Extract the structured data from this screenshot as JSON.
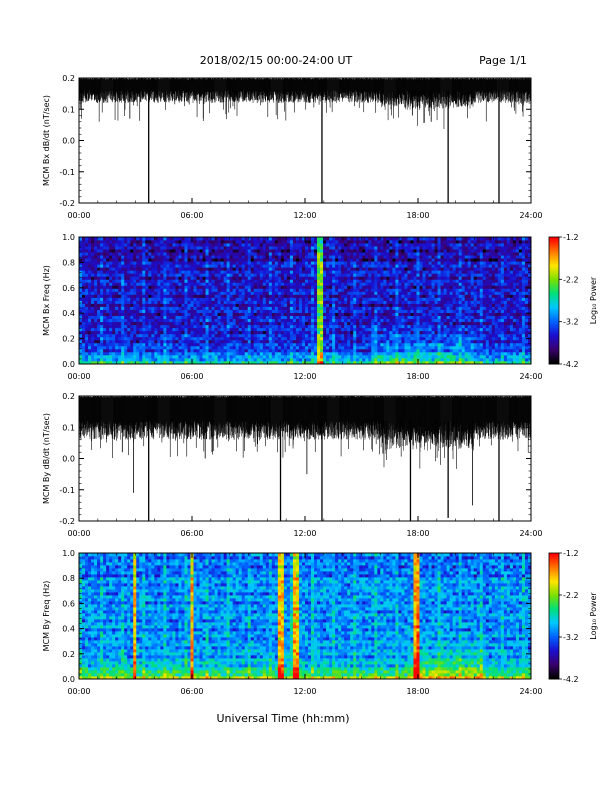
{
  "header": {
    "title": "2018/02/15  00:00-24:00 UT",
    "page": "Page 1/1"
  },
  "footer": {
    "xlabel": "Universal Time (hh:mm)"
  },
  "colors": {
    "trace": "#000000",
    "colormap": [
      "#000000",
      "#3b0070",
      "#1a0fd0",
      "#0064ff",
      "#00c8ff",
      "#00e07a",
      "#7be000",
      "#ffe600",
      "#ff7800",
      "#ff0000"
    ]
  },
  "chart_data": [
    {
      "id": "bx-time",
      "type": "line",
      "ylabel": "MCM Bx dB/dt (nT/sec)",
      "xlim_hours": [
        0,
        24
      ],
      "ylim": [
        -0.2,
        0.2
      ],
      "x_ticks": [
        "00:00",
        "06:00",
        "12:00",
        "18:00",
        "24:00"
      ],
      "y_ticks": [
        "-0.2",
        "-0.1",
        "0.0",
        "0.1",
        "0.2"
      ],
      "band": {
        "top": 0.2,
        "base": 0.16,
        "noise": 0.04
      },
      "spikes": [
        {
          "x": 3.7,
          "y": -0.2
        },
        {
          "x": 12.9,
          "y": -0.2
        },
        {
          "x": 19.6,
          "y": -0.2
        },
        {
          "x": 22.3,
          "y": -0.2
        },
        {
          "x": 2.7,
          "y": 0.07
        },
        {
          "x": 6.6,
          "y": 0.07
        },
        {
          "x": 17.7,
          "y": 0.08
        },
        {
          "x": 18.7,
          "y": 0.06
        }
      ]
    },
    {
      "id": "bx-spec",
      "type": "heatmap",
      "ylabel": "MCM Bx Freq (Hz)",
      "xlim_hours": [
        0,
        24
      ],
      "ylim": [
        0.0,
        1.0
      ],
      "x_ticks": [
        "00:00",
        "06:00",
        "12:00",
        "18:00",
        "24:00"
      ],
      "y_ticks": [
        "0.0",
        "0.2",
        "0.4",
        "0.6",
        "0.8",
        "1.0"
      ],
      "colorbar": {
        "label": "Log₁₀ Power",
        "ticks": [
          "-1.2",
          "-2.2",
          "-3.2",
          "-4.2"
        ],
        "range": [
          -4.2,
          -1.2
        ]
      },
      "features": {
        "base": -3.5,
        "event_hours": [
          12.8
        ],
        "hot_band_hours": [
          15.5,
          21.0
        ]
      }
    },
    {
      "id": "by-time",
      "type": "line",
      "ylabel": "MCM By dB/dt (nT/sec)",
      "xlim_hours": [
        0,
        24
      ],
      "ylim": [
        -0.2,
        0.2
      ],
      "x_ticks": [
        "00:00",
        "06:00",
        "12:00",
        "18:00",
        "24:00"
      ],
      "y_ticks": [
        "-0.2",
        "-0.1",
        "0.0",
        "0.1",
        "0.2"
      ],
      "band": {
        "top": 0.2,
        "base": 0.12,
        "noise": 0.06
      },
      "spikes": [
        {
          "x": 3.7,
          "y": -0.2
        },
        {
          "x": 10.7,
          "y": -0.2
        },
        {
          "x": 12.9,
          "y": -0.2
        },
        {
          "x": 22.3,
          "y": -0.2
        },
        {
          "x": 2.9,
          "y": -0.11
        },
        {
          "x": 17.6,
          "y": -0.2
        },
        {
          "x": 19.6,
          "y": -0.19
        },
        {
          "x": 20.9,
          "y": -0.15
        },
        {
          "x": 6.7,
          "y": 0.0
        },
        {
          "x": 12.1,
          "y": -0.05
        },
        {
          "x": 2.3,
          "y": 0.02
        }
      ]
    },
    {
      "id": "by-spec",
      "type": "heatmap",
      "ylabel": "MCM By Freq (Hz)",
      "xlim_hours": [
        0,
        24
      ],
      "ylim": [
        0.0,
        1.0
      ],
      "x_ticks": [
        "00:00",
        "06:00",
        "12:00",
        "18:00",
        "24:00"
      ],
      "y_ticks": [
        "0.0",
        "0.2",
        "0.4",
        "0.6",
        "0.8",
        "1.0"
      ],
      "colorbar": {
        "label": "Log₁₀ Power",
        "ticks": [
          "-1.2",
          "-2.2",
          "-3.2",
          "-4.2"
        ],
        "range": [
          -4.2,
          -1.2
        ]
      },
      "features": {
        "base": -3.0,
        "event_hours": [
          3.0,
          6.0,
          10.7,
          11.5,
          17.9
        ],
        "hot_band_hours": [
          17.5,
          21.5
        ]
      }
    }
  ]
}
